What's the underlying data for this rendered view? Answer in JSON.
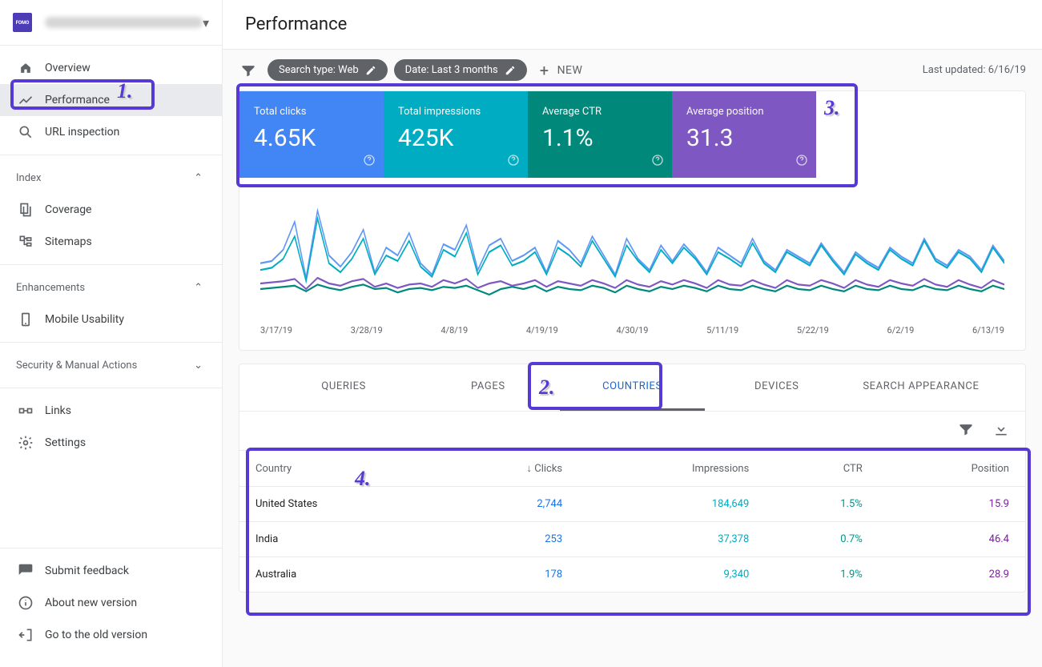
{
  "page_title": "Performance",
  "last_updated": "Last updated: 6/16/19",
  "property": {
    "icon_label": "FOMO"
  },
  "sidebar": {
    "items": [
      {
        "label": "Overview"
      },
      {
        "label": "Performance"
      },
      {
        "label": "URL inspection"
      }
    ],
    "index_heading": "Index",
    "index_items": [
      {
        "label": "Coverage"
      },
      {
        "label": "Sitemaps"
      }
    ],
    "enh_heading": "Enhancements",
    "enh_items": [
      {
        "label": "Mobile Usability"
      }
    ],
    "sec_heading": "Security & Manual Actions",
    "bottom_items": [
      {
        "label": "Links"
      },
      {
        "label": "Settings"
      }
    ],
    "footer_items": [
      {
        "label": "Submit feedback"
      },
      {
        "label": "About new version"
      },
      {
        "label": "Go to the old version"
      }
    ]
  },
  "filters": {
    "search_type": "Search type: Web",
    "date": "Date: Last 3 months",
    "new": "NEW"
  },
  "metrics": [
    {
      "label": "Total clicks",
      "value": "4.65K",
      "color": "#4285f4"
    },
    {
      "label": "Total impressions",
      "value": "425K",
      "color": "#00acc1"
    },
    {
      "label": "Average CTR",
      "value": "1.1%",
      "color": "#00897b"
    },
    {
      "label": "Average position",
      "value": "31.3",
      "color": "#7e57c2"
    }
  ],
  "chart": {
    "x_labels": [
      "3/17/19",
      "3/28/19",
      "4/8/19",
      "4/19/19",
      "4/30/19",
      "5/11/19",
      "5/22/19",
      "6/2/19",
      "6/13/19"
    ],
    "series": [
      {
        "color": "#5e97f6",
        "points": [
          62,
          60,
          50,
          25,
          75,
          15,
          55,
          65,
          52,
          32,
          70,
          48,
          55,
          35,
          62,
          72,
          45,
          50,
          28,
          68,
          46,
          40,
          60,
          55,
          48,
          70,
          42,
          50,
          62,
          38,
          55,
          72,
          40,
          58,
          68,
          46,
          60,
          45,
          56,
          70,
          48,
          55,
          62,
          40,
          60,
          68,
          50,
          56,
          62,
          44,
          58,
          70,
          52,
          60,
          66,
          48,
          56,
          62,
          40,
          58,
          64,
          50,
          56,
          68,
          46,
          60
        ]
      },
      {
        "color": "#00acc1",
        "points": [
          68,
          66,
          58,
          38,
          78,
          22,
          62,
          70,
          58,
          40,
          72,
          55,
          60,
          42,
          65,
          74,
          50,
          56,
          35,
          72,
          52,
          46,
          64,
          60,
          52,
          72,
          48,
          55,
          65,
          42,
          58,
          74,
          46,
          60,
          70,
          50,
          62,
          48,
          58,
          72,
          52,
          58,
          65,
          44,
          62,
          70,
          52,
          58,
          64,
          46,
          60,
          72,
          54,
          62,
          68,
          50,
          58,
          64,
          42,
          60,
          66,
          52,
          58,
          70,
          48,
          62
        ]
      },
      {
        "color": "#00897b",
        "points": [
          85,
          84,
          83,
          82,
          87,
          81,
          84,
          86,
          83,
          81,
          85,
          84,
          88,
          85,
          84,
          86,
          83,
          84,
          82,
          86,
          90,
          85,
          83,
          85,
          82,
          87,
          83,
          85,
          86,
          82,
          84,
          88,
          82,
          85,
          87,
          83,
          85,
          82,
          84,
          87,
          82,
          85,
          86,
          82,
          85,
          87,
          82,
          85,
          86,
          82,
          85,
          87,
          82,
          85,
          86,
          82,
          85,
          86,
          82,
          85,
          86,
          82,
          85,
          87,
          82,
          85
        ]
      },
      {
        "color": "#7e57c2",
        "points": [
          80,
          79,
          78,
          76,
          85,
          75,
          80,
          82,
          78,
          76,
          83,
          80,
          84,
          81,
          80,
          83,
          77,
          80,
          76,
          84,
          80,
          78,
          82,
          80,
          77,
          83,
          78,
          80,
          82,
          77,
          80,
          84,
          77,
          81,
          83,
          78,
          81,
          77,
          80,
          84,
          77,
          81,
          82,
          77,
          81,
          84,
          77,
          81,
          82,
          77,
          80,
          84,
          77,
          81,
          83,
          77,
          80,
          82,
          76,
          81,
          83,
          77,
          81,
          84,
          77,
          81
        ]
      }
    ]
  },
  "tabs": [
    {
      "label": "QUERIES"
    },
    {
      "label": "PAGES"
    },
    {
      "label": "COUNTRIES",
      "active": true
    },
    {
      "label": "DEVICES"
    },
    {
      "label": "SEARCH APPEARANCE"
    }
  ],
  "table": {
    "columns": [
      "Country",
      "Clicks",
      "Impressions",
      "CTR",
      "Position"
    ],
    "rows": [
      [
        "United States",
        "2,744",
        "184,649",
        "1.5%",
        "15.9"
      ],
      [
        "India",
        "253",
        "37,378",
        "0.7%",
        "46.4"
      ],
      [
        "Australia",
        "178",
        "9,340",
        "1.9%",
        "28.9"
      ]
    ]
  },
  "annotations": {
    "a1": "1.",
    "a2": "2.",
    "a3": "3.",
    "a4": "4."
  }
}
